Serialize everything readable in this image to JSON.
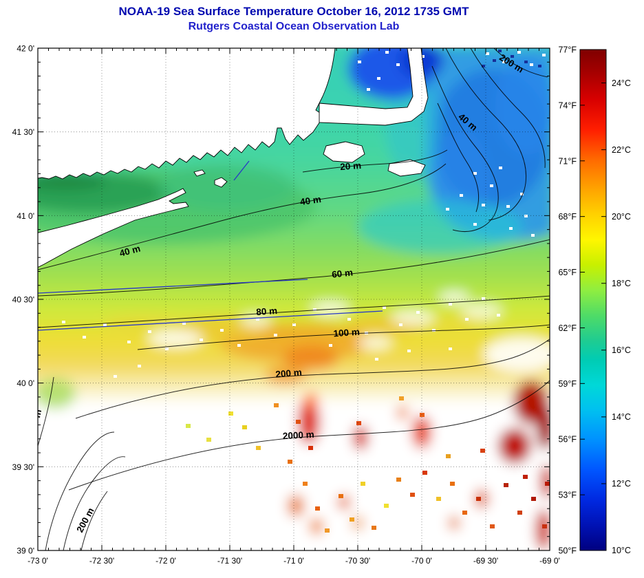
{
  "title": {
    "line1": "NOAA-19 Sea Surface Temperature October 16, 2012 1735 GMT",
    "line2": "Rutgers Coastal Ocean Observation Lab"
  },
  "axes": {
    "x_labels": [
      "-73 0'",
      "-72 30'",
      "-72 0'",
      "-71 30'",
      "-71 0'",
      "-70 30'",
      "-70 0'",
      "-69 30'",
      "-69 0'"
    ],
    "y_labels": [
      "42 0'",
      "41 30'",
      "41 0'",
      "40 30'",
      "40 0'",
      "39 30'",
      "39 0'"
    ]
  },
  "contour_labels": [
    "200 m",
    "40 m",
    "20 m",
    "40 m",
    "40 m",
    "60 m",
    "80 m",
    "100 m",
    "200 m",
    "2000 m",
    "200 m",
    "m"
  ],
  "colorbar": {
    "fahrenheit_labels": [
      "77°F",
      "74°F",
      "71°F",
      "68°F",
      "65°F",
      "62°F",
      "59°F",
      "56°F",
      "53°F",
      "50°F"
    ],
    "celsius_labels": [
      "24°C",
      "22°C",
      "20°C",
      "18°C",
      "16°C",
      "14°C",
      "12°C",
      "10°C"
    ],
    "gradient_top_to_bottom": [
      "#800000",
      "#d80000",
      "#ff6a00",
      "#ffd200",
      "#fff600",
      "#90ee40",
      "#20cc90",
      "#00d8d8",
      "#0090ff",
      "#0028e0",
      "#000080"
    ]
  },
  "palette": {
    "title_blue": "#0008b0",
    "subtitle_blue": "#2222cc"
  }
}
